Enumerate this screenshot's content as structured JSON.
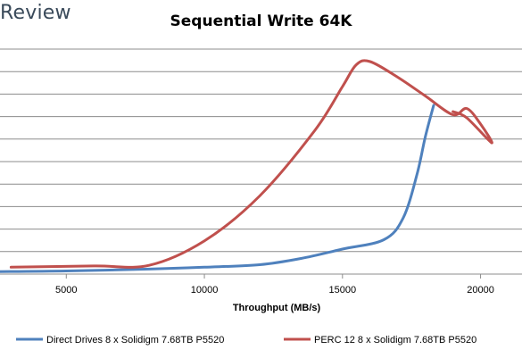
{
  "watermark": "Review",
  "chart_data": {
    "type": "line",
    "title": "Sequential Write 64K",
    "xlabel": "Throughput (MB/s)",
    "ylabel": "",
    "xticks": [
      5000,
      10000,
      15000,
      20000
    ],
    "xlim": [
      2600,
      21500
    ],
    "grid": true,
    "legend_position": "bottom",
    "series": [
      {
        "name": "Direct Drives 8 x Solidigm 7.68TB P5520",
        "color": "#4F81BD",
        "points": [
          [
            2600,
            0.4
          ],
          [
            5000,
            0.5
          ],
          [
            8000,
            0.8
          ],
          [
            10000,
            1.1
          ],
          [
            12000,
            1.5
          ],
          [
            13500,
            2.5
          ],
          [
            15000,
            4.0
          ],
          [
            16500,
            5.5
          ],
          [
            17200,
            9.0
          ],
          [
            17700,
            16.0
          ],
          [
            18000,
            22.0
          ],
          [
            18300,
            27.0
          ]
        ]
      },
      {
        "name": "PERC 12 8 x Solidigm 7.68TB P5520",
        "color": "#C0504D",
        "points": [
          [
            3000,
            1.1
          ],
          [
            6000,
            1.3
          ],
          [
            8000,
            1.4
          ],
          [
            10000,
            5.3
          ],
          [
            12000,
            12.5
          ],
          [
            14000,
            23.0
          ],
          [
            15000,
            30.0
          ],
          [
            15500,
            33.5
          ],
          [
            16000,
            34.0
          ],
          [
            17000,
            31.5
          ],
          [
            18000,
            28.5
          ],
          [
            19000,
            25.5
          ],
          [
            19500,
            26.5
          ],
          [
            20000,
            24.0
          ],
          [
            20400,
            21.0
          ],
          [
            19500,
            25.0
          ],
          [
            19000,
            26.0
          ]
        ]
      }
    ]
  }
}
